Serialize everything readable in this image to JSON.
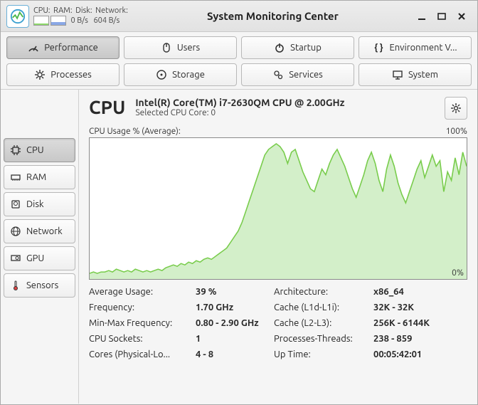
{
  "window": {
    "title": "System Monitoring Center"
  },
  "header": {
    "labels": {
      "cpu": "CPU:",
      "ram": "RAM:",
      "disk": "Disk:",
      "net": "Network:"
    },
    "values": {
      "disk": "0 B/s",
      "net": "604 B/s"
    },
    "bars": {
      "cpu_pct": 20,
      "cpu_color": "#8ed96b",
      "ram_pct": 36,
      "ram_color": "#8aa8e6"
    }
  },
  "toolbar": {
    "performance": "Performance",
    "users": "Users",
    "startup": "Startup",
    "env": "Environment V...",
    "processes": "Processes",
    "storage": "Storage",
    "services": "Services",
    "system": "System"
  },
  "sidebar": {
    "cpu": "CPU",
    "ram": "RAM",
    "disk": "Disk",
    "network": "Network",
    "gpu": "GPU",
    "sensors": "Sensors"
  },
  "cpu": {
    "heading": "CPU",
    "model": "Intel(R) Core(TM) i7-2630QM CPU @ 2.00GHz",
    "selected_core_label": "Selected CPU Core: 0",
    "chart_label": "CPU Usage % (Average):",
    "chart_max": "100%",
    "chart_zero": "0%",
    "background_color": "#ffffff",
    "line_color": "#78cc4b",
    "fill_color": "rgba(130,210,100,0.35)",
    "values": [
      4,
      5,
      4,
      5,
      5,
      6,
      5,
      7,
      6,
      5,
      6,
      5,
      7,
      6,
      5,
      6,
      5,
      6,
      7,
      6,
      8,
      9,
      10,
      9,
      11,
      10,
      12,
      11,
      13,
      12,
      14,
      15,
      14,
      16,
      18,
      20,
      22,
      26,
      30,
      34,
      40,
      48,
      56,
      64,
      72,
      80,
      88,
      92,
      94,
      96,
      94,
      90,
      82,
      90,
      92,
      84,
      76,
      70,
      64,
      62,
      70,
      78,
      74,
      82,
      88,
      92,
      86,
      80,
      72,
      64,
      58,
      66,
      74,
      84,
      90,
      82,
      70,
      62,
      78,
      88,
      80,
      68,
      60,
      54,
      62,
      70,
      78,
      84,
      72,
      80,
      88,
      80,
      84,
      62,
      76,
      70,
      86,
      74,
      90,
      80
    ],
    "details": {
      "avg_usage_label": "Average Usage:",
      "avg_usage": "39 %",
      "freq_label": "Frequency:",
      "freq": "1.70 GHz",
      "minmax_label": "Min-Max Frequency:",
      "minmax": "0.80 - 2.90 GHz",
      "sockets_label": "CPU Sockets:",
      "sockets": "1",
      "cores_label": "Cores (Physical-Lo...",
      "cores": "4 - 8",
      "arch_label": "Architecture:",
      "arch": "x86_64",
      "cache1_label": "Cache (L1d-L1i):",
      "cache1": "32K - 32K",
      "cache2_label": "Cache (L2-L3):",
      "cache2": "256K - 6144K",
      "procs_label": "Processes-Threads:",
      "procs": "238 - 859",
      "uptime_label": "Up Time:",
      "uptime": "00:05:42:01"
    }
  }
}
